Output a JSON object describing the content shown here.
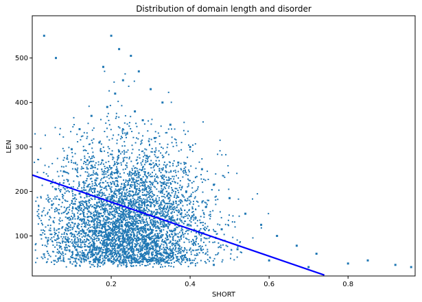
{
  "chart_data": {
    "type": "scatter",
    "title": "Distribution of domain length and disorder",
    "xlabel": "SHORT",
    "ylabel": "LEN",
    "xlim": [
      0.0,
      0.97
    ],
    "ylim": [
      10,
      595
    ],
    "xticks": [
      0.2,
      0.4,
      0.6,
      0.8
    ],
    "yticks": [
      100,
      200,
      300,
      400,
      500
    ],
    "grid": false,
    "series": [
      {
        "kind": "points",
        "color": "#1f77b4",
        "marker_size": 2,
        "description_of_density": "dense cloud centered near SHORT 0.22, LEN 100-300",
        "points": [
          [
            0.2,
            550
          ],
          [
            0.22,
            520
          ],
          [
            0.25,
            505
          ],
          [
            0.18,
            480
          ],
          [
            0.27,
            470
          ],
          [
            0.23,
            450
          ],
          [
            0.3,
            430
          ],
          [
            0.21,
            420
          ],
          [
            0.33,
            400
          ],
          [
            0.19,
            390
          ],
          [
            0.26,
            380
          ],
          [
            0.15,
            370
          ],
          [
            0.28,
            360
          ],
          [
            0.35,
            350
          ],
          [
            0.12,
            340
          ],
          [
            0.24,
            330
          ],
          [
            0.31,
            320
          ],
          [
            0.17,
            310
          ],
          [
            0.4,
            300
          ],
          [
            0.1,
            295
          ],
          [
            0.22,
            290
          ],
          [
            0.29,
            280
          ],
          [
            0.14,
            270
          ],
          [
            0.37,
            265
          ],
          [
            0.43,
            250
          ],
          [
            0.08,
            245
          ],
          [
            0.2,
            240
          ],
          [
            0.33,
            230
          ],
          [
            0.16,
            225
          ],
          [
            0.46,
            215
          ],
          [
            0.26,
            210
          ],
          [
            0.06,
            205
          ],
          [
            0.39,
            200
          ],
          [
            0.12,
            195
          ],
          [
            0.5,
            185
          ],
          [
            0.23,
            180
          ],
          [
            0.3,
            175
          ],
          [
            0.05,
            170
          ],
          [
            0.44,
            165
          ],
          [
            0.18,
            160
          ],
          [
            0.54,
            150
          ],
          [
            0.27,
            145
          ],
          [
            0.09,
            140
          ],
          [
            0.36,
            135
          ],
          [
            0.58,
            125
          ],
          [
            0.21,
            120
          ],
          [
            0.48,
            115
          ],
          [
            0.13,
            110
          ],
          [
            0.62,
            100
          ],
          [
            0.32,
            95
          ],
          [
            0.04,
            90
          ],
          [
            0.41,
            85
          ],
          [
            0.67,
            78
          ],
          [
            0.25,
            75
          ],
          [
            0.52,
            70
          ],
          [
            0.15,
            65
          ],
          [
            0.72,
            60
          ],
          [
            0.38,
            55
          ],
          [
            0.07,
            50
          ],
          [
            0.6,
            45
          ],
          [
            0.28,
            42
          ],
          [
            0.8,
            38
          ],
          [
            0.46,
            35
          ],
          [
            0.11,
            33
          ],
          [
            0.7,
            30
          ],
          [
            0.92,
            35
          ],
          [
            0.96,
            30
          ],
          [
            0.85,
            45
          ],
          [
            0.03,
            550
          ],
          [
            0.06,
            500
          ]
        ]
      },
      {
        "kind": "line",
        "name": "fit",
        "color": "#0000ff",
        "points": [
          [
            0.0,
            237
          ],
          [
            0.74,
            12
          ]
        ]
      }
    ]
  }
}
